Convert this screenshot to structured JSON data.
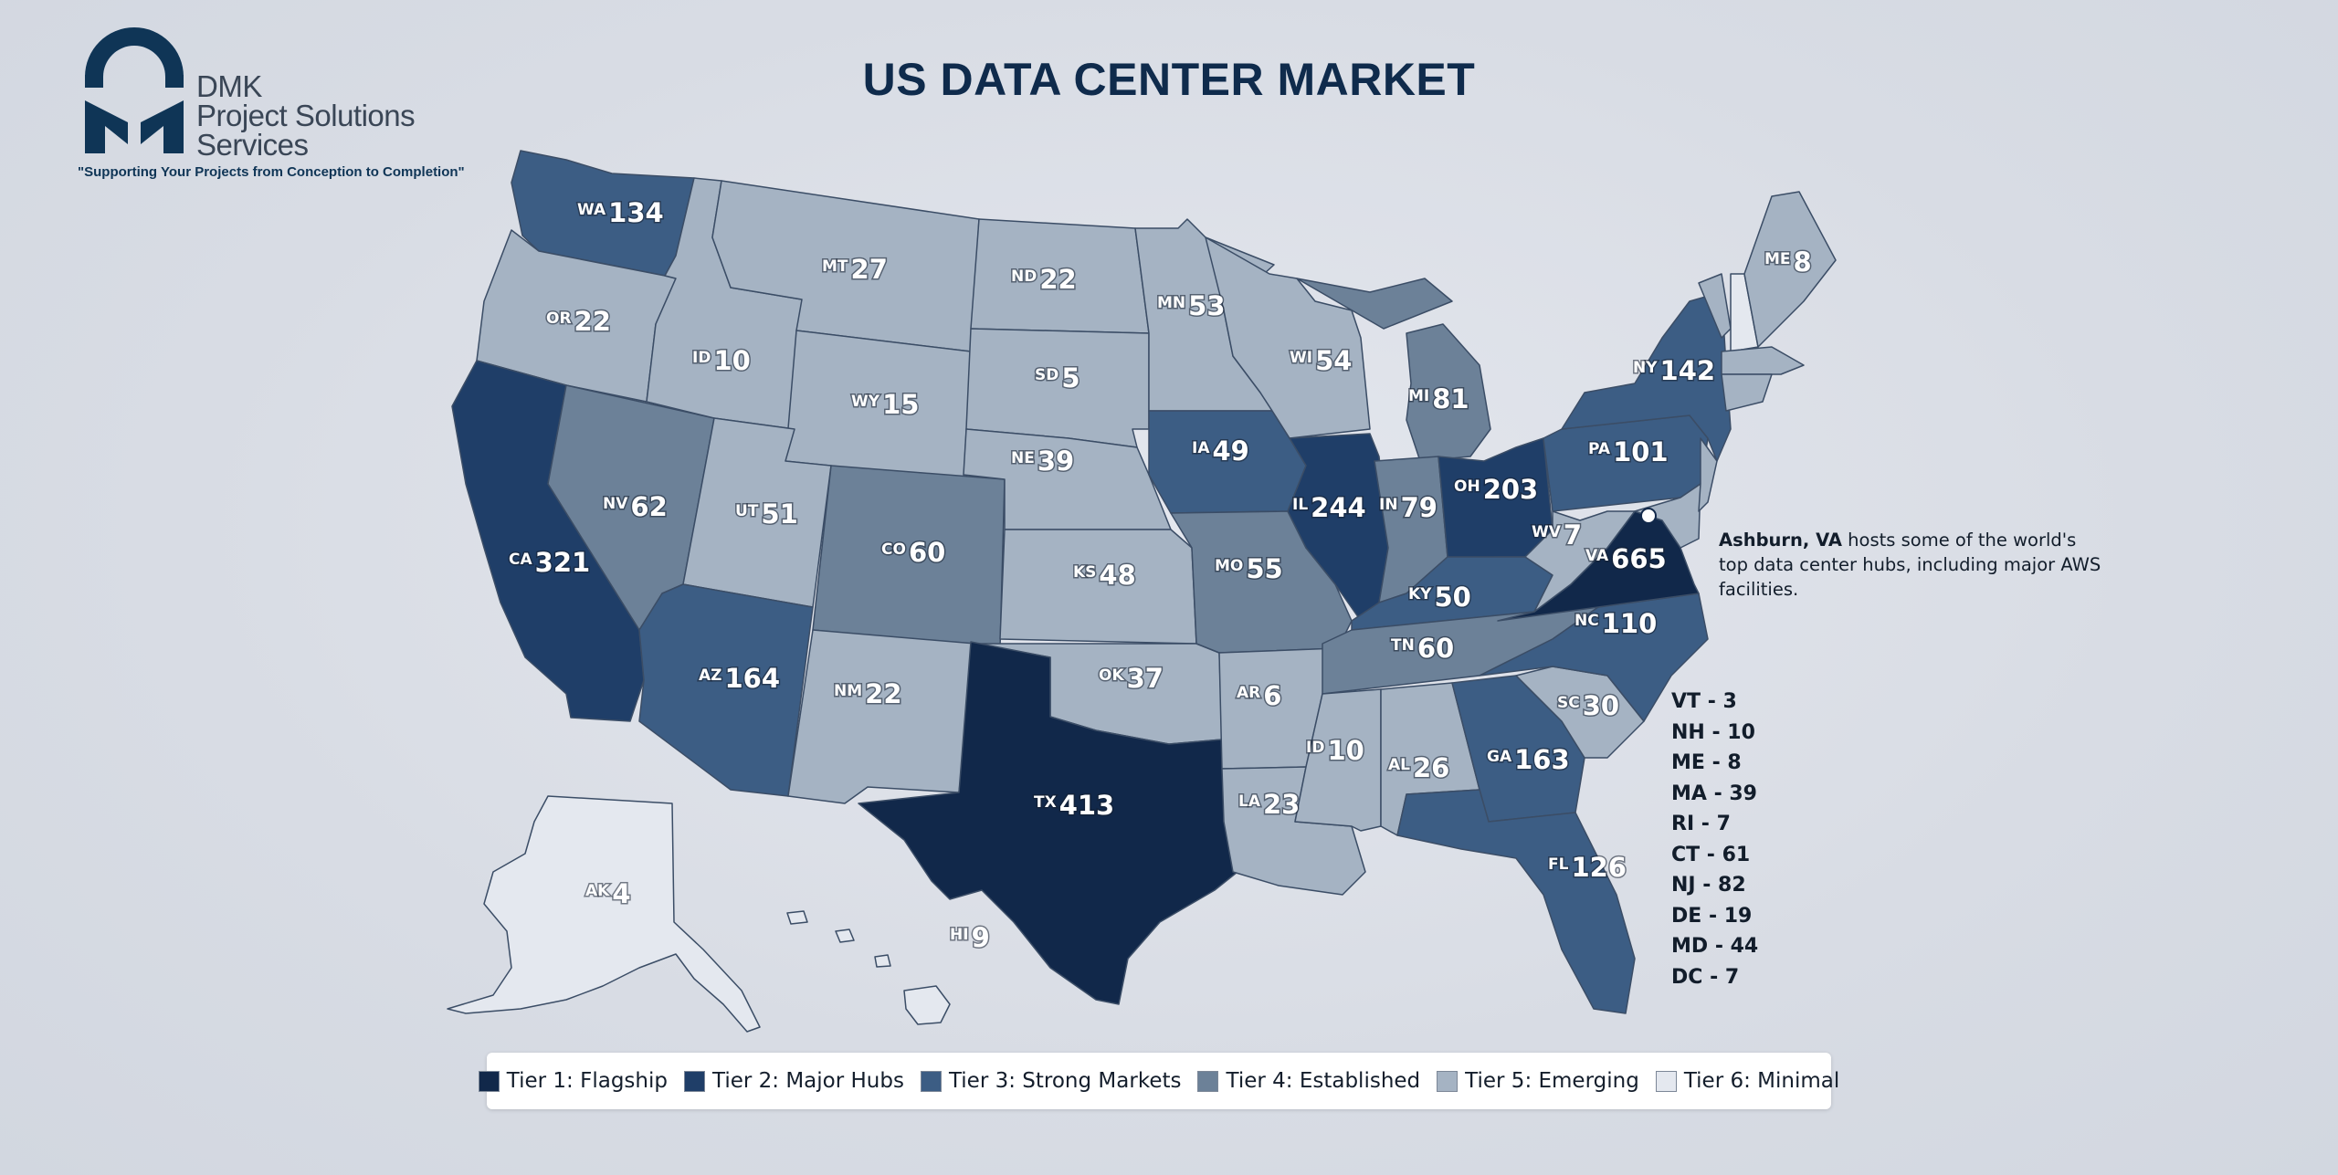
{
  "header": {
    "title": "US DATA CENTER MARKET",
    "logo": {
      "line1": "DMK",
      "line2": "Project Solutions",
      "line3": "Services",
      "tagline": "\"Supporting Your Projects from Conception to Completion\""
    }
  },
  "tier_colors": {
    "tier1": "#11284a",
    "tier2": "#1f3e68",
    "tier3": "#3c5d84",
    "tier4": "#6c8198",
    "tier5": "#a5b3c3",
    "tier6": "#e4e8ef"
  },
  "states": [
    {
      "abbr": "WA",
      "value": 134,
      "tier": 3
    },
    {
      "abbr": "OR",
      "value": 22,
      "tier": 5
    },
    {
      "abbr": "CA",
      "value": 321,
      "tier": 2
    },
    {
      "abbr": "NV",
      "value": 62,
      "tier": 4
    },
    {
      "abbr": "ID",
      "value": 10,
      "tier": 5
    },
    {
      "abbr": "MT",
      "value": 27,
      "tier": 5
    },
    {
      "abbr": "WY",
      "value": 15,
      "tier": 5
    },
    {
      "abbr": "UT",
      "value": 51,
      "tier": 5
    },
    {
      "abbr": "AZ",
      "value": 164,
      "tier": 3
    },
    {
      "abbr": "CO",
      "value": 60,
      "tier": 4
    },
    {
      "abbr": "NM",
      "value": 22,
      "tier": 5
    },
    {
      "abbr": "ND",
      "value": 22,
      "tier": 5
    },
    {
      "abbr": "SD",
      "value": 5,
      "tier": 5
    },
    {
      "abbr": "NE",
      "value": 39,
      "tier": 5
    },
    {
      "abbr": "KS",
      "value": 48,
      "tier": 5
    },
    {
      "abbr": "OK",
      "value": 37,
      "tier": 5
    },
    {
      "abbr": "TX",
      "value": 413,
      "tier": 1
    },
    {
      "abbr": "MN",
      "value": 53,
      "tier": 5
    },
    {
      "abbr": "IA",
      "value": 49,
      "tier": 3
    },
    {
      "abbr": "MO",
      "value": 55,
      "tier": 4
    },
    {
      "abbr": "AR",
      "value": 6,
      "tier": 5
    },
    {
      "abbr": "LA",
      "value": 23,
      "tier": 5
    },
    {
      "abbr": "WI",
      "value": 54,
      "tier": 5
    },
    {
      "abbr": "IL",
      "value": 244,
      "tier": 2
    },
    {
      "abbr": "MI",
      "value": 81,
      "tier": 4
    },
    {
      "abbr": "IN",
      "value": 79,
      "tier": 4
    },
    {
      "abbr": "OH",
      "value": 203,
      "tier": 2
    },
    {
      "abbr": "KY",
      "value": 50,
      "tier": 3
    },
    {
      "abbr": "TN",
      "value": 60,
      "tier": 4
    },
    {
      "abbr": "ID",
      "value": 10,
      "tier": 5
    },
    {
      "abbr": "AL",
      "value": 26,
      "tier": 5
    },
    {
      "abbr": "GA",
      "value": 163,
      "tier": 3
    },
    {
      "abbr": "FL",
      "value": 126,
      "tier": 3
    },
    {
      "abbr": "SC",
      "value": 30,
      "tier": 5
    },
    {
      "abbr": "NC",
      "value": 110,
      "tier": 3
    },
    {
      "abbr": "VA",
      "value": 665,
      "tier": 1
    },
    {
      "abbr": "WV",
      "value": 7,
      "tier": 5
    },
    {
      "abbr": "PA",
      "value": 101,
      "tier": 3
    },
    {
      "abbr": "NY",
      "value": 142,
      "tier": 3
    },
    {
      "abbr": "ME",
      "value": 8,
      "tier": 5
    },
    {
      "abbr": "AK",
      "value": 4,
      "tier": 6
    },
    {
      "abbr": "HI",
      "value": 9,
      "tier": 6
    }
  ],
  "callout": {
    "bold": "Ashburn, VA",
    "text": " hosts some of the world's top data center hubs, including major AWS facilities."
  },
  "small_states": [
    "VT - 3",
    "NH - 10",
    "ME - 8",
    "MA - 39",
    "RI - 7",
    "CT - 61",
    "NJ - 82",
    "DE - 19",
    "MD - 44",
    "DC - 7"
  ],
  "legend": [
    {
      "label": "Tier 1: Flagship",
      "color": "#11284a"
    },
    {
      "label": "Tier 2: Major Hubs",
      "color": "#1f3e68"
    },
    {
      "label": "Tier 3: Strong Markets",
      "color": "#3c5d84"
    },
    {
      "label": "Tier 4: Established",
      "color": "#6c8198"
    },
    {
      "label": "Tier 5: Emerging",
      "color": "#a5b3c3"
    },
    {
      "label": "Tier 6: Minimal",
      "color": "#e4e8ef"
    }
  ]
}
